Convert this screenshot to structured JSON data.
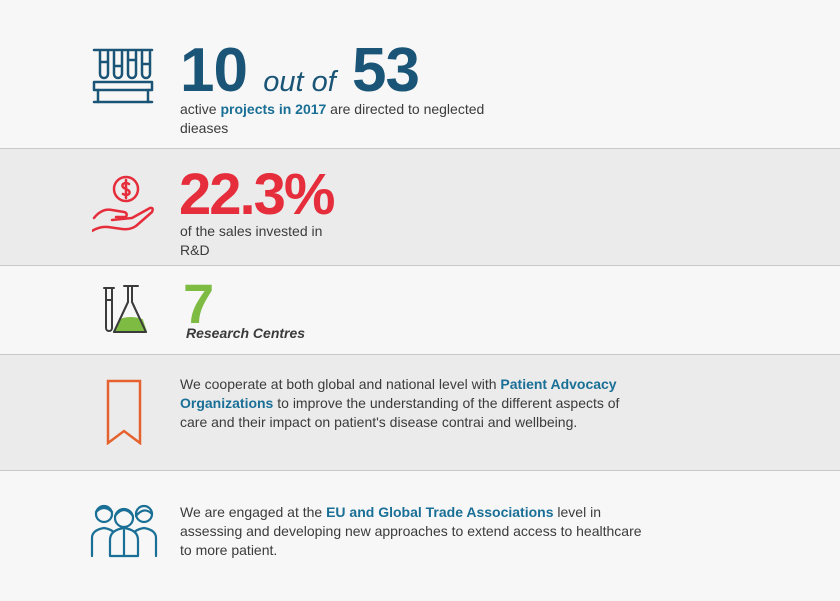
{
  "stat1": {
    "number": "10",
    "middle": "out of",
    "total": "53",
    "desc_before": "active ",
    "desc_highlight": "projects in 2017",
    "desc_after": " are directed to neglected dieases"
  },
  "stat2": {
    "value": "22.3%",
    "desc": "of the sales invested in R&D"
  },
  "stat3": {
    "value": "7",
    "caption": "Research Centres"
  },
  "info1": {
    "text_before": "We cooperate at both global and national level with ",
    "highlight": "Patient Advocacy Organizations",
    "text_after": " to improve the understanding of the different aspects of care and their impact on patient's disease contrai and wellbeing."
  },
  "info2": {
    "text_before": "We are engaged at the ",
    "highlight": "EU and Global Trade Associations",
    "text_after": " level in assessing and developing new approaches to extend access to healthcare to more patient."
  },
  "icons": {
    "stat1": "test-tubes-icon",
    "stat2": "money-hand-icon",
    "stat3": "lab-flask-icon",
    "info1": "bookmark-icon",
    "info2": "people-group-icon"
  },
  "colors": {
    "blue": "#1a5476",
    "red": "#e52d3b",
    "green": "#7dbb42",
    "orange": "#e5622e",
    "highlight": "#1a6f96"
  }
}
